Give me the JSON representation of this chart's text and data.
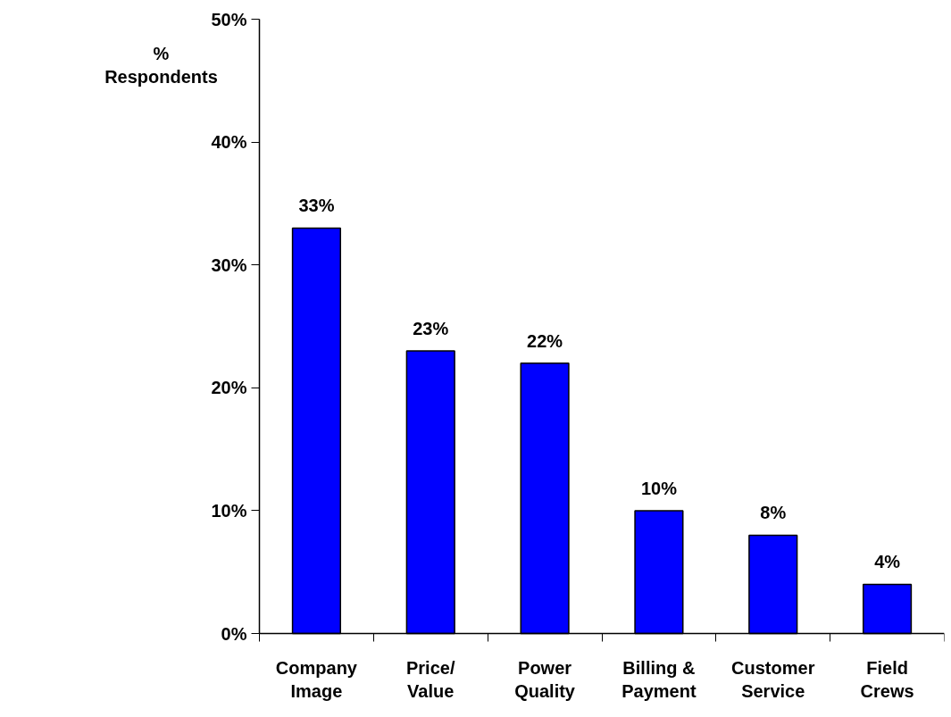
{
  "chart_data": {
    "type": "bar",
    "ylabel": "%\nRespondents",
    "categories": [
      "Company\nImage",
      "Price/\nValue",
      "Power\nQuality",
      "Billing &\nPayment",
      "Customer\nService",
      "Field\nCrews"
    ],
    "values": [
      33,
      23,
      22,
      10,
      8,
      4
    ],
    "value_labels": [
      "33%",
      "23%",
      "22%",
      "10%",
      "8%",
      "4%"
    ],
    "color": "#0000ff",
    "ylim": [
      0,
      50
    ],
    "yticks": [
      {
        "value": 0,
        "label": "0%"
      },
      {
        "value": 10,
        "label": "10%"
      },
      {
        "value": 20,
        "label": "20%"
      },
      {
        "value": 30,
        "label": "30%"
      },
      {
        "value": 40,
        "label": "40%"
      },
      {
        "value": 50,
        "label": "50%"
      }
    ],
    "grid": false
  }
}
